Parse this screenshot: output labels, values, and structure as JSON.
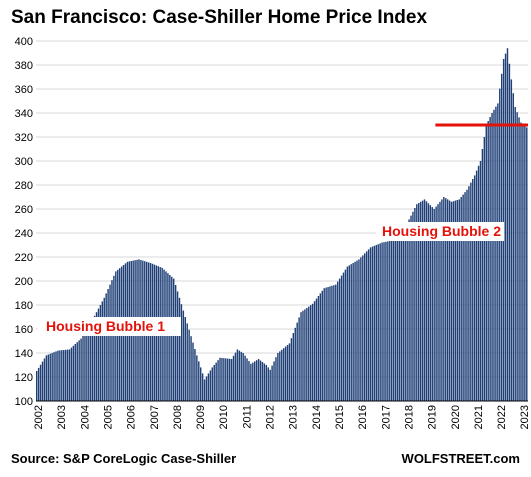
{
  "chart_data": {
    "type": "bar",
    "title": "San Francisco: Case-Shiller Home Price Index",
    "xlabel": "",
    "ylabel": "",
    "ylim": [
      100,
      400
    ],
    "yticks": [
      100,
      120,
      140,
      160,
      180,
      200,
      220,
      240,
      260,
      280,
      300,
      320,
      340,
      360,
      380,
      400
    ],
    "ytick_labels": [
      "100",
      "120",
      "140",
      "160",
      "180",
      "200",
      "220",
      "240",
      "260",
      "280",
      "300",
      "320",
      "340",
      "360",
      "380",
      "400"
    ],
    "x_labels": [
      "2002",
      "2003",
      "2004",
      "2005",
      "2006",
      "2007",
      "2008",
      "2009",
      "2010",
      "2011",
      "2012",
      "2013",
      "2014",
      "2015",
      "2016",
      "2017",
      "2018",
      "2019",
      "2020",
      "2021",
      "2022",
      "2023"
    ],
    "grid": true,
    "bar_color": "#1f3f77",
    "annotation_color": "#e3120b",
    "series": [
      {
        "frequency": "monthly",
        "start": "2002-01",
        "end": "2023-03",
        "anchors": [
          [
            "2002-01",
            125
          ],
          [
            "2002-06",
            138
          ],
          [
            "2002-12",
            142
          ],
          [
            "2003-06",
            143
          ],
          [
            "2003-12",
            152
          ],
          [
            "2004-06",
            168
          ],
          [
            "2004-12",
            186
          ],
          [
            "2005-06",
            208
          ],
          [
            "2005-12",
            216
          ],
          [
            "2006-06",
            218
          ],
          [
            "2006-12",
            215
          ],
          [
            "2007-06",
            211
          ],
          [
            "2007-12",
            202
          ],
          [
            "2008-06",
            170
          ],
          [
            "2008-12",
            138
          ],
          [
            "2009-04",
            118
          ],
          [
            "2009-08",
            128
          ],
          [
            "2009-12",
            136
          ],
          [
            "2010-06",
            135
          ],
          [
            "2010-09",
            143
          ],
          [
            "2010-12",
            140
          ],
          [
            "2011-04",
            131
          ],
          [
            "2011-08",
            135
          ],
          [
            "2011-12",
            130
          ],
          [
            "2012-02",
            126
          ],
          [
            "2012-06",
            140
          ],
          [
            "2012-12",
            148
          ],
          [
            "2013-06",
            174
          ],
          [
            "2013-12",
            181
          ],
          [
            "2014-06",
            194
          ],
          [
            "2014-12",
            197
          ],
          [
            "2015-06",
            212
          ],
          [
            "2015-12",
            218
          ],
          [
            "2016-06",
            228
          ],
          [
            "2016-12",
            232
          ],
          [
            "2017-06",
            234
          ],
          [
            "2017-12",
            245
          ],
          [
            "2018-06",
            264
          ],
          [
            "2018-10",
            268
          ],
          [
            "2019-03",
            260
          ],
          [
            "2019-08",
            270
          ],
          [
            "2019-12",
            266
          ],
          [
            "2020-04",
            268
          ],
          [
            "2020-08",
            276
          ],
          [
            "2020-12",
            288
          ],
          [
            "2021-03",
            300
          ],
          [
            "2021-06",
            330
          ],
          [
            "2021-09",
            340
          ],
          [
            "2021-12",
            348
          ],
          [
            "2022-03",
            385
          ],
          [
            "2022-05",
            394
          ],
          [
            "2022-07",
            368
          ],
          [
            "2022-09",
            345
          ],
          [
            "2022-12",
            332
          ],
          [
            "2023-03",
            328
          ]
        ]
      }
    ],
    "reference_line": {
      "y": 330,
      "from": "2019-04",
      "to": "2023-03",
      "color": "#e3120b"
    },
    "annotations": [
      {
        "text": "Housing Bubble 1"
      },
      {
        "text": "Housing Bubble 2"
      }
    ],
    "footer_left": "Source: S&P CoreLogic Case-Shiller",
    "footer_right": "WOLFSTREET.com"
  }
}
